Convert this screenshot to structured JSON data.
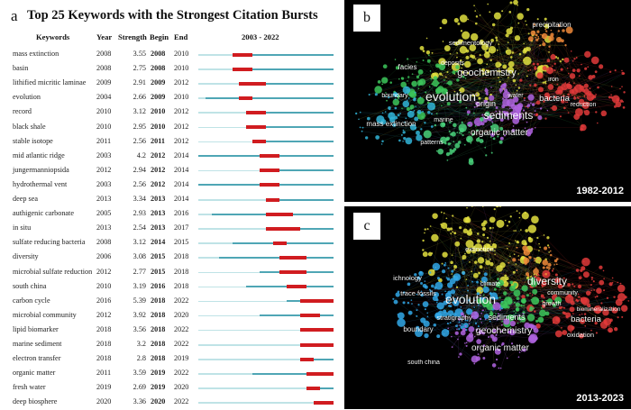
{
  "chart_data": [
    {
      "type": "table",
      "panel": "a",
      "title": "Top 25 Keywords with the Strongest Citation Bursts",
      "columns": [
        "Keywords",
        "Year",
        "Strength",
        "Begin",
        "End",
        "2003 - 2022"
      ],
      "range_start": 2003,
      "range_end": 2022,
      "colors": {
        "burst": "#d01c20",
        "active": "#4fa6b5",
        "inactive": "#bfe3e6"
      },
      "rows": [
        {
          "keyword": "mass extinction",
          "year": 2008,
          "strength": "3.55",
          "begin": 2008,
          "end": 2010
        },
        {
          "keyword": "basin",
          "year": 2008,
          "strength": "2.75",
          "begin": 2008,
          "end": 2010
        },
        {
          "keyword": "lithified micritic laminae",
          "year": 2009,
          "strength": "2.91",
          "begin": 2009,
          "end": 2012
        },
        {
          "keyword": "evolution",
          "year": 2004,
          "strength": "2.66",
          "begin": 2009,
          "end": 2010
        },
        {
          "keyword": "record",
          "year": 2010,
          "strength": "3.12",
          "begin": 2010,
          "end": 2012
        },
        {
          "keyword": "black shale",
          "year": 2010,
          "strength": "2.95",
          "begin": 2010,
          "end": 2012
        },
        {
          "keyword": "stable isotope",
          "year": 2011,
          "strength": "2.56",
          "begin": 2011,
          "end": 2012
        },
        {
          "keyword": "mid atlantic ridge",
          "year": 2003,
          "strength": "4.2",
          "begin": 2012,
          "end": 2014
        },
        {
          "keyword": "jungermanniopsida",
          "year": 2012,
          "strength": "2.94",
          "begin": 2012,
          "end": 2014
        },
        {
          "keyword": "hydrothermal vent",
          "year": 2003,
          "strength": "2.56",
          "begin": 2012,
          "end": 2014
        },
        {
          "keyword": "deep sea",
          "year": 2013,
          "strength": "3.34",
          "begin": 2013,
          "end": 2014
        },
        {
          "keyword": "authigenic carbonate",
          "year": 2005,
          "strength": "2.93",
          "begin": 2013,
          "end": 2016
        },
        {
          "keyword": "in situ",
          "year": 2013,
          "strength": "2.54",
          "begin": 2013,
          "end": 2017
        },
        {
          "keyword": "sulfate reducing bacteria",
          "year": 2008,
          "strength": "3.12",
          "begin": 2014,
          "end": 2015
        },
        {
          "keyword": "diversity",
          "year": 2006,
          "strength": "3.08",
          "begin": 2015,
          "end": 2018
        },
        {
          "keyword": "microbial sulfate reduction",
          "year": 2012,
          "strength": "2.77",
          "begin": 2015,
          "end": 2018
        },
        {
          "keyword": "south china",
          "year": 2010,
          "strength": "3.19",
          "begin": 2016,
          "end": 2018
        },
        {
          "keyword": "carbon cycle",
          "year": 2016,
          "strength": "5.39",
          "begin": 2018,
          "end": 2022
        },
        {
          "keyword": "microbial community",
          "year": 2012,
          "strength": "3.92",
          "begin": 2018,
          "end": 2020
        },
        {
          "keyword": "lipid biomarker",
          "year": 2018,
          "strength": "3.56",
          "begin": 2018,
          "end": 2022
        },
        {
          "keyword": "marine sediment",
          "year": 2018,
          "strength": "3.2",
          "begin": 2018,
          "end": 2022
        },
        {
          "keyword": "electron transfer",
          "year": 2018,
          "strength": "2.8",
          "begin": 2018,
          "end": 2019
        },
        {
          "keyword": "organic matter",
          "year": 2011,
          "strength": "3.59",
          "begin": 2019,
          "end": 2022
        },
        {
          "keyword": "fresh water",
          "year": 2019,
          "strength": "2.69",
          "begin": 2019,
          "end": 2020
        },
        {
          "keyword": "deep biosphere",
          "year": 2020,
          "strength": "3.36",
          "begin": 2020,
          "end": 2022
        }
      ]
    },
    {
      "type": "scatter",
      "panel": "b",
      "subtitle": "1982-2012",
      "labels": [
        "sedimentology",
        "precipitation",
        "geochemistry",
        "deposits",
        "facies",
        "evolution",
        "origin",
        "water",
        "bacteria",
        "iron",
        "sediments",
        "reduction",
        "boundary",
        "mass extinction",
        "organic matter",
        "marine",
        "patterns"
      ]
    },
    {
      "type": "scatter",
      "panel": "c",
      "subtitle": "2013-2023",
      "labels": [
        "diversity",
        "evolution",
        "extinction",
        "geochemistry",
        "sediments",
        "bacteria",
        "organic matter",
        "stratigraphy",
        "ichnology",
        "trace fossils",
        "boundary",
        "climate",
        "growth",
        "community",
        "oxidation",
        "biomineralization",
        "south china"
      ]
    }
  ]
}
